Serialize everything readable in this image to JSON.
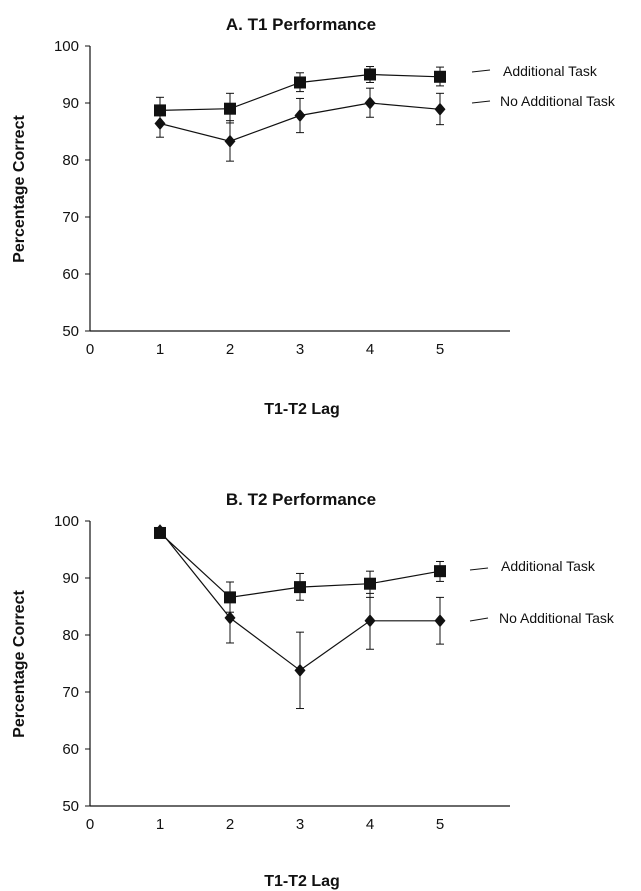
{
  "chart_data": [
    {
      "type": "line",
      "title": "A. T1 Performance",
      "xlabel": "T1-T2 Lag",
      "ylabel": "Percentage Correct",
      "xlim": [
        0,
        6
      ],
      "ylim": [
        50,
        100
      ],
      "xticks": [
        0,
        1,
        2,
        3,
        4,
        5
      ],
      "yticks": [
        50,
        60,
        70,
        80,
        90,
        100
      ],
      "grid": false,
      "x": [
        1,
        2,
        3,
        4,
        5
      ],
      "series": [
        {
          "name": "Additional Task",
          "marker": "square",
          "values": [
            88.7,
            89.0,
            93.6,
            95.0,
            94.6
          ],
          "error_low": [
            86.5,
            86.5,
            92.0,
            93.6,
            93.0
          ],
          "error_high": [
            91.0,
            91.7,
            95.3,
            96.4,
            96.3
          ]
        },
        {
          "name": "No Additional Task",
          "marker": "diamond",
          "values": [
            86.4,
            83.3,
            87.8,
            90.0,
            88.9
          ],
          "error_low": [
            84.0,
            79.8,
            84.8,
            87.5,
            86.2
          ],
          "error_high": [
            88.7,
            86.9,
            90.8,
            92.6,
            91.7
          ]
        }
      ]
    },
    {
      "type": "line",
      "title": "B. T2 Performance",
      "xlabel": "T1-T2 Lag",
      "ylabel": "Percentage Correct",
      "xlim": [
        0,
        6
      ],
      "ylim": [
        50,
        100
      ],
      "xticks": [
        0,
        1,
        2,
        3,
        4,
        5
      ],
      "yticks": [
        50,
        60,
        70,
        80,
        90,
        100
      ],
      "grid": false,
      "x": [
        1,
        2,
        3,
        4,
        5
      ],
      "series": [
        {
          "name": "Additional Task",
          "marker": "square",
          "values": [
            97.9,
            86.6,
            88.4,
            89.0,
            91.2
          ],
          "error_low": [
            97.9,
            84.0,
            86.1,
            86.6,
            89.4
          ],
          "error_high": [
            97.9,
            89.3,
            90.8,
            91.2,
            92.9
          ]
        },
        {
          "name": "No Additional Task",
          "marker": "diamond",
          "values": [
            98.3,
            83.0,
            73.8,
            82.5,
            82.5
          ],
          "error_low": [
            98.3,
            78.6,
            67.1,
            77.5,
            78.4
          ],
          "error_high": [
            98.3,
            87.3,
            80.5,
            87.3,
            86.6
          ]
        }
      ]
    }
  ]
}
